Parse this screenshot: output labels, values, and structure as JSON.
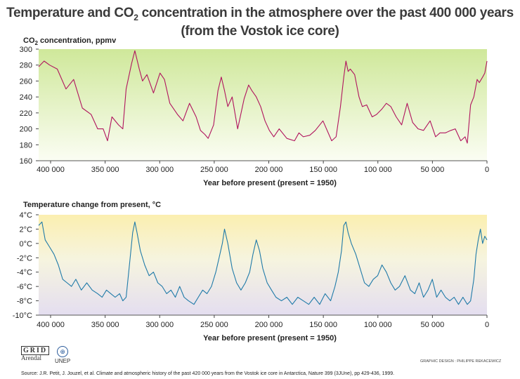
{
  "title_line1_a": "Temperature and CO",
  "title_line1_sub": "2",
  "title_line1_b": " concentration in the atmosphere over the past 400 000 years",
  "title_line2": "(from the Vostok ice core)",
  "logos": {
    "grid": "GRID",
    "arendal": "Arendal",
    "unep": "UNEP"
  },
  "credit": "GRAPHIC DESIGN : PHILIPPE REKACEWICZ",
  "source": "Source: J.R. Petit, J. Jouzel, et al. Climate and atmospheric history of the past 420 000 years from the Vostok ice core in Antarctica, Nature 399 (3JUne), pp 429-436, 1999.",
  "chart_data": [
    {
      "type": "line",
      "title": "Temperature and CO2 concentration in the atmosphere over the past 400 000 years",
      "ylabel_a": "CO",
      "ylabel_sub": "2",
      "ylabel_b": " concentration, ppmv",
      "xlabel": "Year before present (present = 1950)",
      "xlim": [
        410000,
        0
      ],
      "ylim": [
        160,
        300
      ],
      "yticks": [
        "300",
        "280",
        "260",
        "240",
        "220",
        "200",
        "180",
        "160"
      ],
      "xticks": [
        "400 000",
        "350 000",
        "300 000",
        "250 000",
        "200 000",
        "150 000",
        "100 000",
        "50 000",
        "0"
      ],
      "colors": {
        "line": "#b0145e",
        "bg_top": "#cfe89a",
        "bg_bottom": "#fbfdf3"
      },
      "series": [
        {
          "name": "CO2",
          "x": [
            410000,
            405000,
            400000,
            393000,
            385000,
            378000,
            370000,
            362000,
            356000,
            351000,
            347000,
            343000,
            337000,
            333000,
            330000,
            325000,
            322000,
            318000,
            315000,
            311000,
            305000,
            299000,
            295000,
            290000,
            283000,
            278000,
            272000,
            266000,
            262000,
            258000,
            255000,
            250000,
            246000,
            243000,
            240000,
            237000,
            233000,
            228000,
            222000,
            218000,
            215000,
            211000,
            207000,
            203000,
            199000,
            195000,
            190000,
            183000,
            176000,
            172000,
            168000,
            162000,
            157000,
            150000,
            142000,
            138000,
            134000,
            131000,
            129000,
            127000,
            125000,
            121000,
            117000,
            114000,
            110000,
            105000,
            101000,
            96000,
            92000,
            88000,
            83000,
            78000,
            73000,
            68000,
            63000,
            58000,
            52000,
            47000,
            43000,
            38000,
            33000,
            29000,
            24000,
            20000,
            18000,
            15000,
            12000,
            9000,
            7000,
            4000,
            2000,
            0
          ],
          "values": [
            278,
            285,
            280,
            275,
            250,
            262,
            226,
            218,
            200,
            200,
            185,
            215,
            205,
            200,
            250,
            282,
            298,
            275,
            260,
            268,
            245,
            270,
            262,
            232,
            218,
            210,
            232,
            215,
            198,
            193,
            188,
            205,
            248,
            265,
            248,
            228,
            240,
            200,
            238,
            255,
            248,
            240,
            228,
            210,
            198,
            190,
            200,
            188,
            185,
            195,
            190,
            192,
            198,
            210,
            185,
            190,
            228,
            265,
            285,
            272,
            275,
            268,
            240,
            228,
            230,
            215,
            218,
            225,
            232,
            228,
            215,
            205,
            232,
            208,
            200,
            198,
            210,
            190,
            195,
            195,
            198,
            200,
            185,
            190,
            182,
            230,
            240,
            262,
            258,
            265,
            270,
            285
          ]
        }
      ]
    },
    {
      "type": "line",
      "ylabel": "Temperature change from present, °C",
      "xlabel": "Year before present (present = 1950)",
      "xlim": [
        410000,
        0
      ],
      "ylim": [
        -10,
        4
      ],
      "yticks": [
        "4°C",
        "2°C",
        "0°C",
        "-2°C",
        "-4°C",
        "-6°C",
        "-8°C",
        "-10°C"
      ],
      "xticks": [
        "400 000",
        "350 000",
        "300 000",
        "250 000",
        "200 000",
        "150 000",
        "100 000",
        "50 000",
        "0"
      ],
      "colors": {
        "line": "#1f7aa8",
        "bg_top": "#fbefb0",
        "bg_bottom": "#e4def0"
      },
      "series": [
        {
          "name": "Temperature",
          "x": [
            410000,
            407000,
            404000,
            400000,
            396000,
            392000,
            388000,
            384000,
            380000,
            376000,
            371000,
            366000,
            361000,
            356000,
            352000,
            348000,
            344000,
            340000,
            336000,
            333000,
            330000,
            327000,
            324000,
            322000,
            320000,
            317000,
            313000,
            309000,
            305000,
            301000,
            297000,
            293000,
            289000,
            285000,
            281000,
            277000,
            273000,
            268000,
            264000,
            260000,
            256000,
            252000,
            248000,
            245000,
            242000,
            240000,
            237000,
            233000,
            229000,
            225000,
            221000,
            217000,
            214000,
            211000,
            208000,
            205000,
            201000,
            197000,
            193000,
            188000,
            183000,
            178000,
            173000,
            168000,
            163000,
            158000,
            153000,
            148000,
            143000,
            139000,
            136000,
            133000,
            131000,
            129000,
            127000,
            124000,
            120000,
            116000,
            112000,
            108000,
            104000,
            100000,
            96000,
            92000,
            88000,
            84000,
            80000,
            75000,
            70000,
            66000,
            62000,
            58000,
            54000,
            50000,
            46000,
            42000,
            38000,
            34000,
            30000,
            26000,
            22000,
            18000,
            15000,
            12000,
            10000,
            8000,
            6000,
            4000,
            2000,
            0
          ],
          "values": [
            2.5,
            3.0,
            0.5,
            -0.5,
            -1.5,
            -3.0,
            -5.0,
            -5.5,
            -6.0,
            -5.0,
            -6.5,
            -5.5,
            -6.5,
            -7.0,
            -7.5,
            -6.5,
            -7.0,
            -7.5,
            -7.0,
            -8.0,
            -7.5,
            -3.0,
            1.5,
            3.0,
            1.5,
            -1.0,
            -3.0,
            -4.5,
            -4.0,
            -5.5,
            -6.0,
            -7.0,
            -6.5,
            -7.5,
            -6.0,
            -7.5,
            -8.0,
            -8.5,
            -7.5,
            -6.5,
            -7.0,
            -6.0,
            -4.0,
            -2.0,
            0.0,
            2.0,
            0.0,
            -3.5,
            -5.5,
            -6.5,
            -5.5,
            -4.0,
            -1.5,
            0.5,
            -1.0,
            -3.5,
            -5.5,
            -6.5,
            -7.5,
            -8.0,
            -7.5,
            -8.5,
            -7.5,
            -8.0,
            -8.5,
            -7.5,
            -8.5,
            -7.0,
            -8.0,
            -6.0,
            -4.0,
            -1.0,
            2.5,
            3.0,
            1.5,
            0.0,
            -1.5,
            -3.5,
            -5.5,
            -6.0,
            -5.0,
            -4.5,
            -3.0,
            -4.0,
            -5.5,
            -6.5,
            -6.0,
            -4.5,
            -6.5,
            -7.0,
            -5.5,
            -7.5,
            -6.5,
            -5.0,
            -7.5,
            -6.5,
            -7.5,
            -8.0,
            -7.5,
            -8.5,
            -7.5,
            -8.5,
            -8.0,
            -5.0,
            -1.5,
            0.5,
            2.0,
            0.0,
            1.0,
            0.5
          ]
        }
      ]
    }
  ]
}
